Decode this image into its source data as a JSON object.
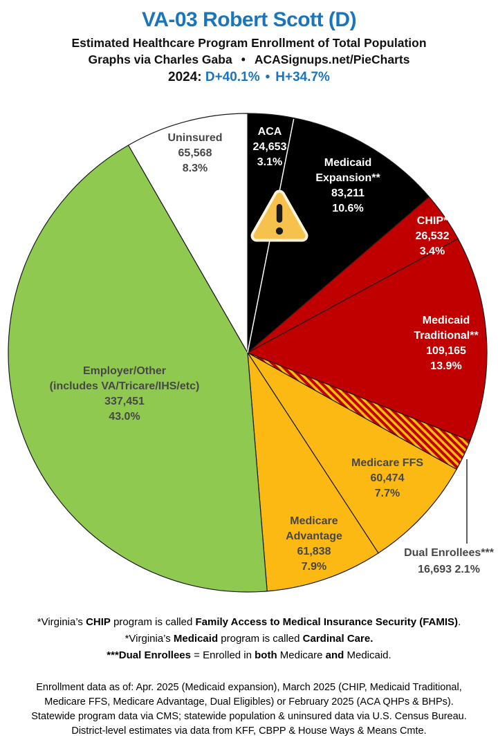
{
  "header": {
    "title": "VA-03 Robert Scott (D)",
    "subtitle": "Estimated Healthcare Program Enrollment of Total Population",
    "credit_left": "Graphs via Charles Gaba",
    "credit_sep": "•",
    "credit_right": "ACASignups.net/PieCharts",
    "year_label": "2024:",
    "lean_d": "D+40.1%",
    "lean_sep": "•",
    "lean_h": "H+34.7%"
  },
  "colors": {
    "accent_blue": "#1b75bc",
    "black_slice": "#000000",
    "red_slice": "#c00000",
    "gold_slice": "#fcb813",
    "green_slice": "#90c94f",
    "white_slice": "#ffffff",
    "hatch_red": "#c00000",
    "hatch_gold": "#ffc107",
    "dark_label_text": "#474747",
    "light_label_text": "#ffffff",
    "warning_triangle_fill": "#f6c14d",
    "warning_triangle_border": "#fdf3da",
    "slice_outline": "#1a1a1a"
  },
  "chart_data": {
    "type": "pie",
    "title": "Estimated Healthcare Program Enrollment of Total Population",
    "start_angle_deg": 0,
    "direction": "clockwise",
    "legend_position": "labels-on-slices",
    "slices": [
      {
        "id": "aca",
        "label_lines": [
          "ACA"
        ],
        "value": 24653,
        "value_text": "24,653",
        "percent": 3.1,
        "pct_text": "3.1%",
        "color": "#000000",
        "text": "light"
      },
      {
        "id": "medicaid_expansion",
        "label_lines": [
          "Medicaid",
          "Expansion**"
        ],
        "value": 83211,
        "value_text": "83,211",
        "percent": 10.6,
        "pct_text": "10.6%",
        "color": "#000000",
        "text": "light"
      },
      {
        "id": "chip",
        "label_lines": [
          "CHIP*"
        ],
        "value": 26532,
        "value_text": "26,532",
        "percent": 3.4,
        "pct_text": "3.4%",
        "color": "#c00000",
        "text": "light"
      },
      {
        "id": "medicaid_traditional",
        "label_lines": [
          "Medicaid",
          "Traditional**"
        ],
        "value": 109165,
        "value_text": "109,165",
        "percent": 13.9,
        "pct_text": "13.9%",
        "color": "#c00000",
        "text": "light"
      },
      {
        "id": "dual_enrollees",
        "label_lines": [
          "Dual Enrollees***"
        ],
        "value": 16693,
        "value_text": "16,693",
        "percent": 2.1,
        "pct_text": "2.1%",
        "color": "hatch",
        "hatch": true,
        "value_inline": true,
        "text": "dark",
        "label_outside": true
      },
      {
        "id": "medicare_ffs",
        "label_lines": [
          "Medicare FFS"
        ],
        "value": 60474,
        "value_text": "60,474",
        "percent": 7.7,
        "pct_text": "7.7%",
        "color": "#fcb813",
        "text": "dark"
      },
      {
        "id": "medicare_advantage",
        "label_lines": [
          "Medicare",
          "Advantage"
        ],
        "value": 61838,
        "value_text": "61,838",
        "percent": 7.9,
        "pct_text": "7.9%",
        "color": "#fcb813",
        "text": "dark"
      },
      {
        "id": "employer_other",
        "label_lines": [
          "Employer/Other",
          "(includes VA/Tricare/IHS/etc)"
        ],
        "value": 337451,
        "value_text": "337,451",
        "percent": 43.0,
        "pct_text": "43.0%",
        "color": "#90c94f",
        "text": "dark"
      },
      {
        "id": "uninsured",
        "label_lines": [
          "Uninsured"
        ],
        "value": 65568,
        "value_text": "65,568",
        "percent": 8.3,
        "pct_text": "8.3%",
        "color": "#ffffff",
        "text": "dark"
      }
    ]
  },
  "footnotes": {
    "lines": [
      [
        {
          "t": "*Virginia’s ",
          "b": false
        },
        {
          "t": "CHIP",
          "b": true
        },
        {
          "t": " program is called ",
          "b": false
        },
        {
          "t": "Family Access to Medical Insurance Security (FAMIS)",
          "b": true
        },
        {
          "t": ".",
          "b": false
        }
      ],
      [
        {
          "t": "*Virginia’s ",
          "b": false
        },
        {
          "t": "Medicaid",
          "b": true
        },
        {
          "t": " program is called ",
          "b": false
        },
        {
          "t": "Cardinal Care",
          "b": true
        },
        {
          "t": ".",
          "b": true
        }
      ],
      [
        {
          "t": "***Dual Enrollees",
          "b": true
        },
        {
          "t": " = Enrolled in ",
          "b": false
        },
        {
          "t": "both",
          "b": true
        },
        {
          "t": " Medicare ",
          "b": false
        },
        {
          "t": "and",
          "b": true
        },
        {
          "t": " Medicaid.",
          "b": false
        }
      ]
    ]
  },
  "sources": {
    "lines": [
      "Enrollment data as of: Apr. 2025 (Medicaid expansion), March 2025 (CHIP, Medicaid Traditional,",
      "Medicare FFS, Medicare Advantage, Dual Eligibles) or February 2025 (ACA QHPs & BHPs).",
      "Statewide program data via CMS; statewide population & uninsured data via U.S. Census Bureau.",
      "District-level estimates via data from KFF, CBPP & House Ways & Means Cmte."
    ]
  }
}
